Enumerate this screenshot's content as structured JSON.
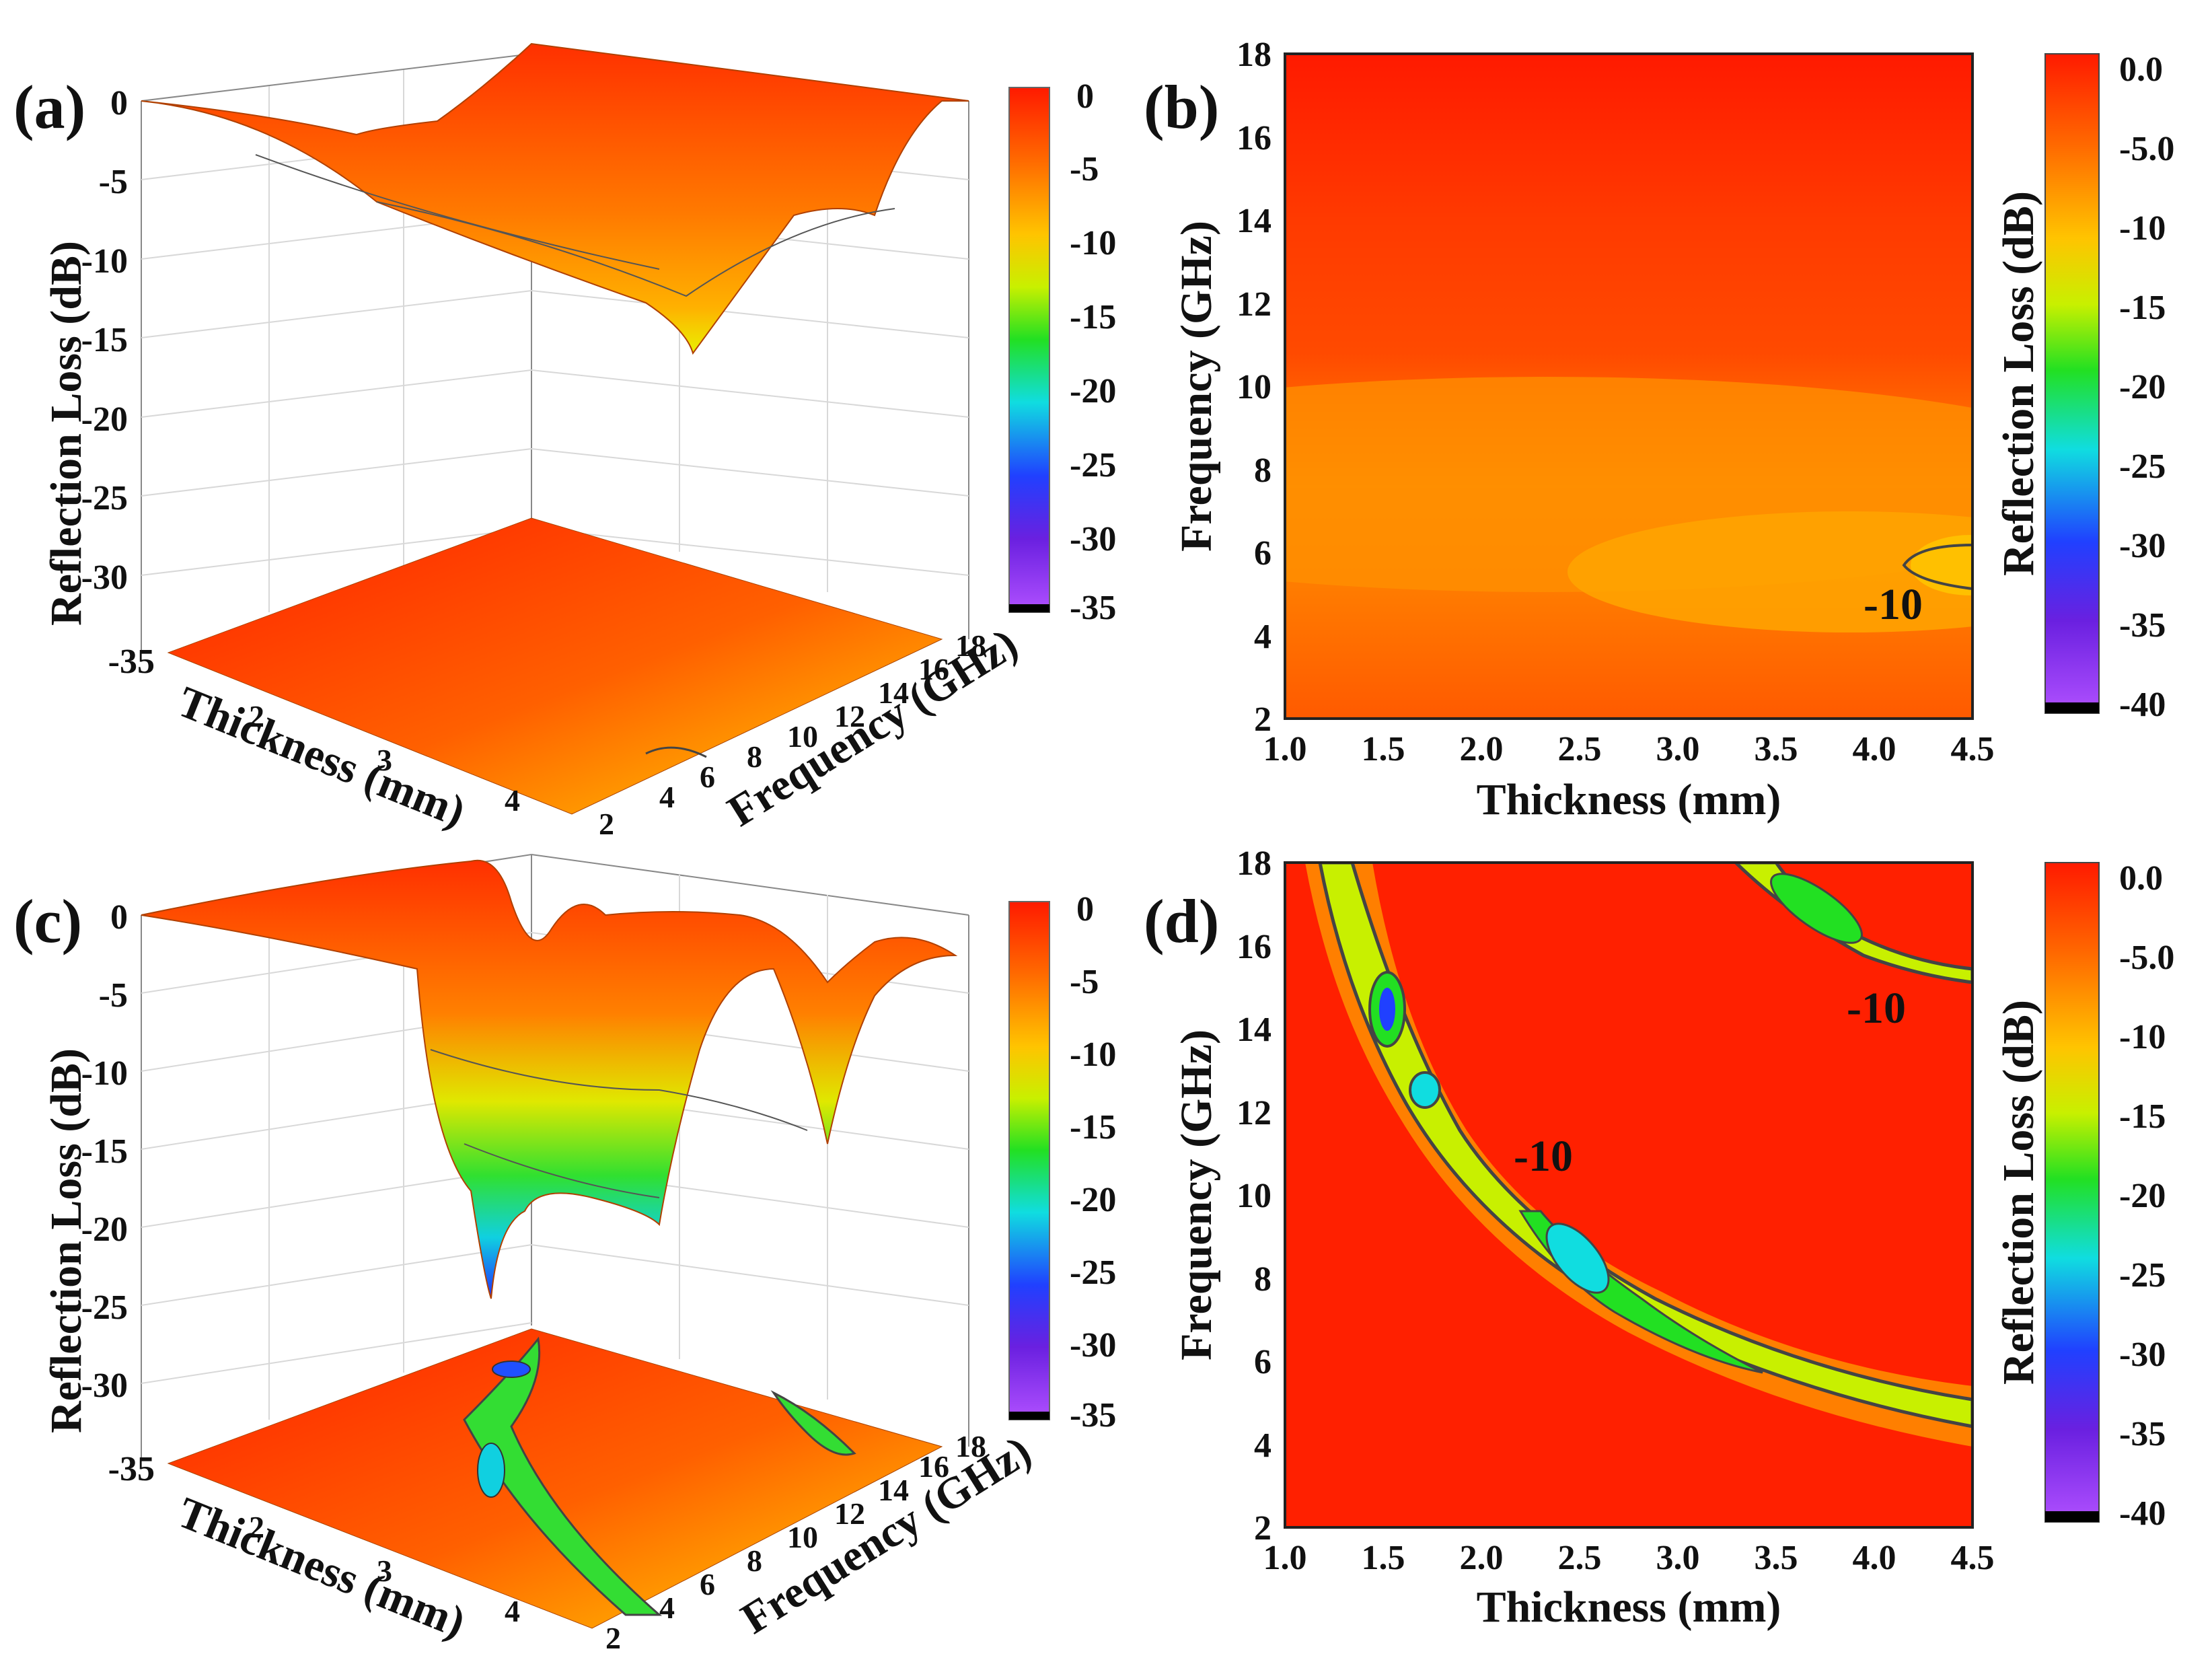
{
  "colors": {
    "red": "#ff1a00",
    "orange": "#ff7a00",
    "yellow": "#f2f200",
    "green": "#22e022",
    "cyan": "#10dde0",
    "blue": "#2040ff",
    "violet": "#9b30ff",
    "contour": "#444444"
  },
  "chart_data": [
    {
      "panel": "(a)",
      "type": "surface3d",
      "zlabel": "Reflection Loss (dB)",
      "xlabel": "Thickness (mm)",
      "ylabel": "Frequency (GHz)",
      "z_ticks": [
        "0",
        "-5",
        "-10",
        "-15",
        "-20",
        "-25",
        "-30",
        "-35"
      ],
      "thickness_ticks": [
        "2",
        "3",
        "4"
      ],
      "frequency_ticks": [
        "2",
        "4",
        "6",
        "8",
        "10",
        "12",
        "14",
        "16",
        "18"
      ],
      "zlim": [
        -35,
        0
      ],
      "min_rl": -15,
      "colorbar": {
        "ticks": [
          "0",
          "-5",
          "-10",
          "-15",
          "-20",
          "-25",
          "-30",
          "-35"
        ],
        "range": [
          -35,
          0
        ]
      }
    },
    {
      "panel": "(b)",
      "type": "heatmap",
      "xlabel": "Thickness (mm)",
      "ylabel": "Frequency (GHz)",
      "x_ticks": [
        "1.0",
        "1.5",
        "2.0",
        "2.5",
        "3.0",
        "3.5",
        "4.0",
        "4.5"
      ],
      "y_ticks": [
        "2",
        "4",
        "6",
        "8",
        "10",
        "12",
        "14",
        "16",
        "18"
      ],
      "xlim": [
        1.0,
        4.5
      ],
      "ylim": [
        2,
        18
      ],
      "contour_label": "-10",
      "colorbar": {
        "label": "Reflection Loss (dB)",
        "ticks": [
          "0.0",
          "-5.0",
          "-10",
          "-15",
          "-20",
          "-25",
          "-30",
          "-35",
          "-40"
        ],
        "range": [
          -40,
          0
        ]
      }
    },
    {
      "panel": "(c)",
      "type": "surface3d",
      "zlabel": "Reflection Loss (dB)",
      "xlabel": "Thickness (mm)",
      "ylabel": "Frequency (GHz)",
      "z_ticks": [
        "0",
        "-5",
        "-10",
        "-15",
        "-20",
        "-25",
        "-30",
        "-35"
      ],
      "thickness_ticks": [
        "2",
        "3",
        "4"
      ],
      "frequency_ticks": [
        "2",
        "4",
        "6",
        "8",
        "10",
        "12",
        "14",
        "16",
        "18"
      ],
      "zlim": [
        -35,
        0
      ],
      "min_rl": -25,
      "colorbar": {
        "ticks": [
          "0",
          "-5",
          "-10",
          "-15",
          "-20",
          "-25",
          "-30",
          "-35"
        ],
        "range": [
          -35,
          0
        ]
      }
    },
    {
      "panel": "(d)",
      "type": "heatmap",
      "xlabel": "Thickness (mm)",
      "ylabel": "Frequency (GHz)",
      "x_ticks": [
        "1.0",
        "1.5",
        "2.0",
        "2.5",
        "3.0",
        "3.5",
        "4.0",
        "4.5"
      ],
      "y_ticks": [
        "2",
        "4",
        "6",
        "8",
        "10",
        "12",
        "14",
        "16",
        "18"
      ],
      "xlim": [
        1.0,
        4.5
      ],
      "ylim": [
        2,
        18
      ],
      "contour_labels": [
        "-10",
        "-10"
      ],
      "colorbar": {
        "label": "Reflection Loss (dB)",
        "ticks": [
          "0.0",
          "-5.0",
          "-10",
          "-15",
          "-20",
          "-25",
          "-30",
          "-35",
          "-40"
        ],
        "range": [
          -40,
          0
        ]
      }
    }
  ]
}
